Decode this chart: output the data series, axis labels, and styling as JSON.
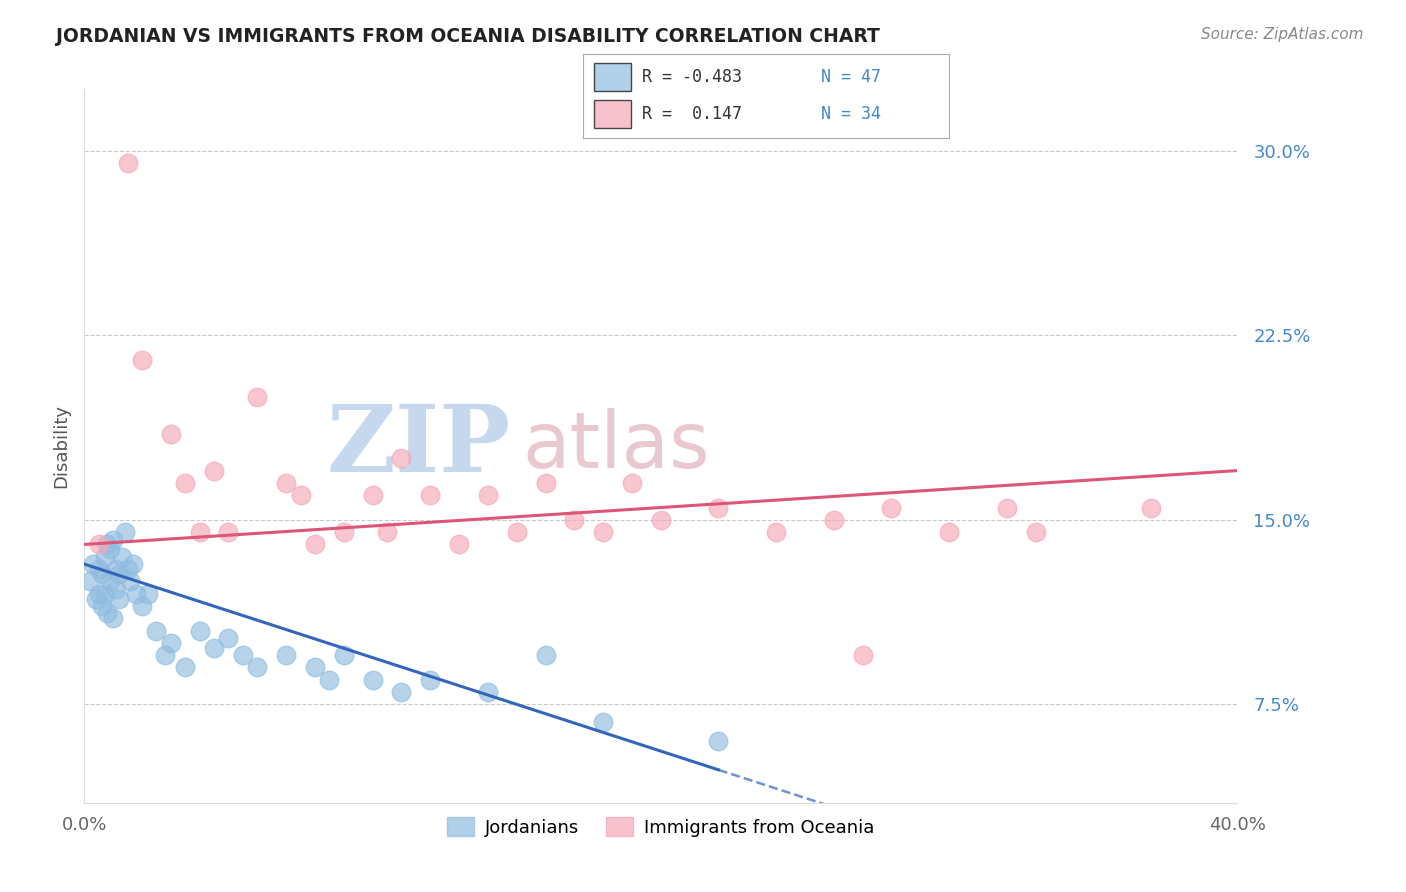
{
  "title": "JORDANIAN VS IMMIGRANTS FROM OCEANIA DISABILITY CORRELATION CHART",
  "source": "Source: ZipAtlas.com",
  "ylabel": "Disability",
  "y_ticks": [
    7.5,
    15.0,
    22.5,
    30.0
  ],
  "y_tick_labels": [
    "7.5%",
    "15.0%",
    "22.5%",
    "30.0%"
  ],
  "x_min": 0.0,
  "x_max": 40.0,
  "y_min": 3.5,
  "y_max": 32.5,
  "blue_color": "#90bce0",
  "pink_color": "#f4a8b8",
  "blue_line_color": "#3366bb",
  "pink_line_color": "#dd5577",
  "title_color": "#222222",
  "source_color": "#888888",
  "tick_color_y": "#4488cc",
  "tick_color_x": "#666666",
  "grid_color": "#bbbbbb",
  "jordanian_x": [
    0.2,
    0.3,
    0.4,
    0.5,
    0.5,
    0.6,
    0.6,
    0.7,
    0.7,
    0.8,
    0.8,
    0.9,
    0.9,
    1.0,
    1.0,
    1.1,
    1.1,
    1.2,
    1.2,
    1.3,
    1.4,
    1.5,
    1.6,
    1.7,
    1.8,
    2.0,
    2.2,
    2.5,
    2.8,
    3.0,
    3.5,
    4.0,
    4.5,
    5.0,
    5.5,
    6.0,
    7.0,
    8.0,
    8.5,
    9.0,
    10.0,
    11.0,
    12.0,
    14.0,
    16.0,
    18.0,
    22.0
  ],
  "jordanian_y": [
    12.5,
    13.2,
    11.8,
    13.0,
    12.0,
    12.8,
    11.5,
    13.5,
    12.0,
    14.0,
    11.2,
    13.8,
    12.5,
    14.2,
    11.0,
    13.0,
    12.2,
    12.8,
    11.8,
    13.5,
    14.5,
    13.0,
    12.5,
    13.2,
    12.0,
    11.5,
    12.0,
    10.5,
    9.5,
    10.0,
    9.0,
    10.5,
    9.8,
    10.2,
    9.5,
    9.0,
    9.5,
    9.0,
    8.5,
    9.5,
    8.5,
    8.0,
    8.5,
    8.0,
    9.5,
    6.8,
    6.0
  ],
  "oceania_x": [
    0.5,
    1.5,
    2.0,
    3.0,
    3.5,
    4.0,
    4.5,
    5.0,
    6.0,
    7.0,
    7.5,
    8.0,
    9.0,
    10.0,
    10.5,
    11.0,
    12.0,
    13.0,
    14.0,
    15.0,
    16.0,
    17.0,
    18.0,
    19.0,
    20.0,
    22.0,
    24.0,
    26.0,
    27.0,
    28.0,
    30.0,
    32.0,
    33.0,
    37.0
  ],
  "oceania_y": [
    14.0,
    29.5,
    21.5,
    18.5,
    16.5,
    14.5,
    17.0,
    14.5,
    20.0,
    16.5,
    16.0,
    14.0,
    14.5,
    16.0,
    14.5,
    17.5,
    16.0,
    14.0,
    16.0,
    14.5,
    16.5,
    15.0,
    14.5,
    16.5,
    15.0,
    15.5,
    14.5,
    15.0,
    9.5,
    15.5,
    14.5,
    15.5,
    14.5,
    15.5
  ],
  "blue_intercept": 13.2,
  "blue_slope": -0.38,
  "pink_intercept": 14.0,
  "pink_slope": 0.075,
  "watermark1": "ZIP",
  "watermark2": "atlas",
  "wm_color1": "#c5d8ee",
  "wm_color2": "#eac8d0"
}
